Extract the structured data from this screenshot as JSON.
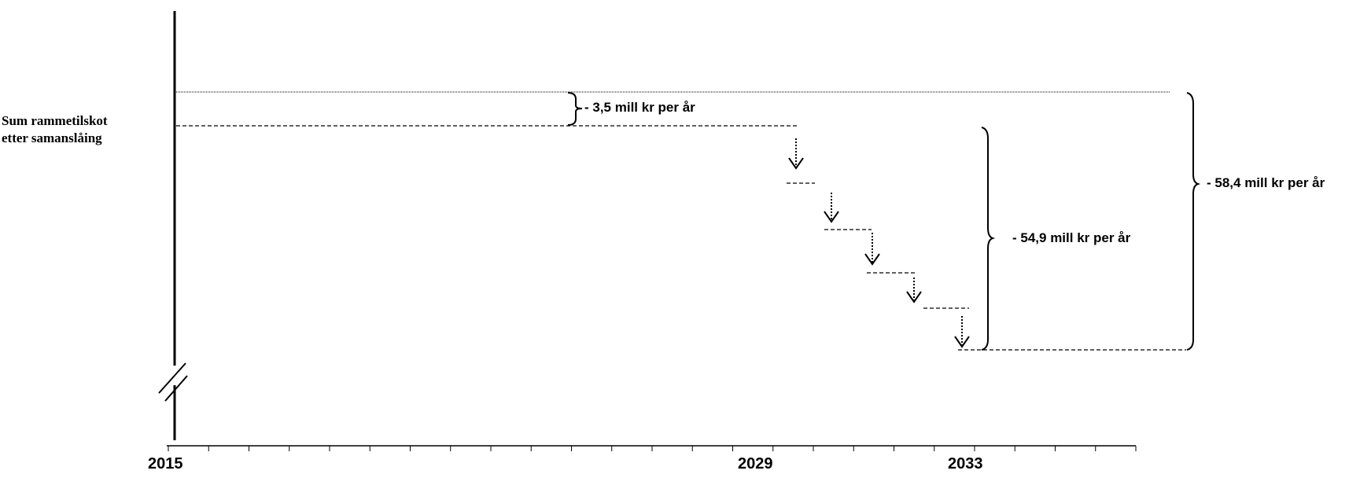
{
  "diagram": {
    "axis_label": [
      "Sum rammetilskot",
      "etter samanslåing"
    ],
    "annotations": {
      "reduction_small": "- 3,5 mill kr per år",
      "reduction_medium": "- 54,9 mill kr per år",
      "reduction_total": "- 58,4 mill kr per år"
    },
    "x_axis": {
      "years": [
        "2015",
        "2029",
        "2033"
      ],
      "tick_count": 24
    },
    "step_count": 5,
    "line_color": "#000000"
  }
}
